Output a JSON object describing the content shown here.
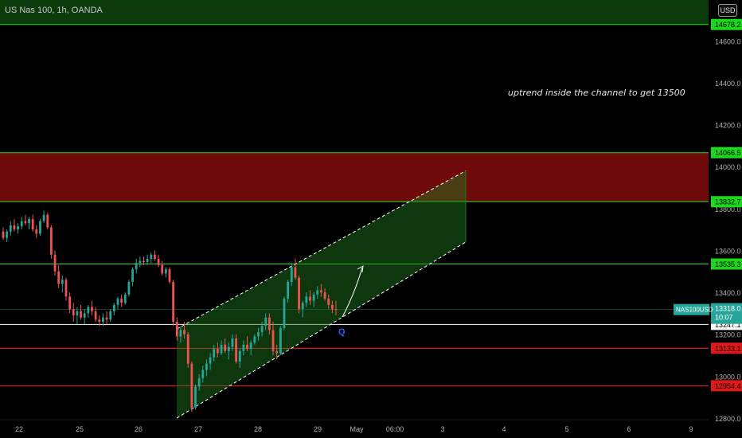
{
  "header": {
    "symbol": "US Nas 100, 1h, OANDA",
    "currency": "USD"
  },
  "annotation": "uptrend inside the channel  to get 13500",
  "chart_data": {
    "type": "candlestick",
    "ylim": [
      12800,
      14430
    ],
    "y_ticks": [
      "14600.0",
      "14400.0",
      "14200.0",
      "14000.0",
      "13800.0",
      "13600.0",
      "13400.0",
      "13200.0",
      "13000.0",
      "12800.0"
    ],
    "x_ticks": [
      "22",
      "25",
      "26",
      "27",
      "28",
      "29",
      "May",
      "06:00",
      "3",
      "4",
      "5",
      "6",
      "9"
    ],
    "last_price": {
      "symbol": "NAS100USD",
      "price": "13318.0",
      "countdown": "10:07",
      "color": "#26a69a"
    },
    "levels": [
      {
        "value": 14678.2,
        "label": "14678.2",
        "color": "#20e020"
      },
      {
        "value": 14066.5,
        "label": "14066.5",
        "color": "#20e020"
      },
      {
        "value": 13832.7,
        "label": "13832.7",
        "color": "#20e020"
      },
      {
        "value": 13535.3,
        "label": "13535.3",
        "color": "#20e020"
      },
      {
        "value": 13247.1,
        "label": "13247.1",
        "color": "#ffffff"
      },
      {
        "value": 13133.1,
        "label": "13133.1",
        "color": "#ff2020"
      },
      {
        "value": 12954.4,
        "label": "12954.4",
        "color": "#ff2020"
      }
    ],
    "zones": [
      {
        "from": 14678.2,
        "to": 14900,
        "color": "#0b3a0b"
      },
      {
        "from": 13832.7,
        "to": 14066.5,
        "color": "#6e0a0a"
      }
    ],
    "channel": {
      "start_close": 12850,
      "end": 13980,
      "bottom_end": 13640
    },
    "marker_label": "Q",
    "candles": [
      [
        13690,
        13710,
        13650,
        13660
      ],
      [
        13660,
        13700,
        13640,
        13690
      ],
      [
        13690,
        13740,
        13670,
        13720
      ],
      [
        13720,
        13750,
        13690,
        13700
      ],
      [
        13700,
        13730,
        13680,
        13715
      ],
      [
        13715,
        13760,
        13700,
        13740
      ],
      [
        13740,
        13770,
        13720,
        13730
      ],
      [
        13730,
        13760,
        13700,
        13750
      ],
      [
        13750,
        13770,
        13690,
        13700
      ],
      [
        13700,
        13720,
        13660,
        13680
      ],
      [
        13680,
        13750,
        13670,
        13740
      ],
      [
        13740,
        13790,
        13730,
        13770
      ],
      [
        13770,
        13780,
        13700,
        13710
      ],
      [
        13710,
        13720,
        13560,
        13580
      ],
      [
        13580,
        13600,
        13480,
        13500
      ],
      [
        13500,
        13530,
        13420,
        13440
      ],
      [
        13440,
        13480,
        13400,
        13460
      ],
      [
        13460,
        13470,
        13360,
        13380
      ],
      [
        13380,
        13400,
        13300,
        13320
      ],
      [
        13320,
        13350,
        13260,
        13290
      ],
      [
        13290,
        13330,
        13250,
        13310
      ],
      [
        13310,
        13340,
        13270,
        13280
      ],
      [
        13280,
        13320,
        13250,
        13300
      ],
      [
        13300,
        13340,
        13280,
        13330
      ],
      [
        13330,
        13360,
        13290,
        13310
      ],
      [
        13310,
        13330,
        13260,
        13270
      ],
      [
        13270,
        13290,
        13240,
        13260
      ],
      [
        13260,
        13300,
        13240,
        13280
      ],
      [
        13280,
        13310,
        13250,
        13270
      ],
      [
        13270,
        13320,
        13260,
        13310
      ],
      [
        13310,
        13350,
        13290,
        13340
      ],
      [
        13340,
        13380,
        13320,
        13370
      ],
      [
        13370,
        13390,
        13330,
        13350
      ],
      [
        13350,
        13400,
        13340,
        13390
      ],
      [
        13390,
        13460,
        13380,
        13450
      ],
      [
        13450,
        13520,
        13430,
        13510
      ],
      [
        13510,
        13560,
        13490,
        13540
      ],
      [
        13540,
        13570,
        13520,
        13550
      ],
      [
        13550,
        13570,
        13530,
        13545
      ],
      [
        13545,
        13580,
        13530,
        13560
      ],
      [
        13560,
        13590,
        13540,
        13580
      ],
      [
        13580,
        13600,
        13550,
        13560
      ],
      [
        13560,
        13580,
        13520,
        13530
      ],
      [
        13530,
        13550,
        13480,
        13490
      ],
      [
        13490,
        13520,
        13470,
        13510
      ],
      [
        13510,
        13520,
        13440,
        13450
      ],
      [
        13450,
        13460,
        13240,
        13260
      ],
      [
        13260,
        13280,
        13170,
        13190
      ],
      [
        13190,
        13240,
        13160,
        13220
      ],
      [
        13220,
        13260,
        13180,
        13200
      ],
      [
        13200,
        13210,
        13040,
        13060
      ],
      [
        13060,
        13070,
        12830,
        12850
      ],
      [
        12850,
        12960,
        12840,
        12950
      ],
      [
        12950,
        13010,
        12930,
        12990
      ],
      [
        12990,
        13050,
        12970,
        13030
      ],
      [
        13030,
        13080,
        13000,
        13060
      ],
      [
        13060,
        13110,
        13030,
        13090
      ],
      [
        13090,
        13150,
        13070,
        13130
      ],
      [
        13130,
        13160,
        13090,
        13110
      ],
      [
        13110,
        13170,
        13100,
        13150
      ],
      [
        13150,
        13180,
        13110,
        13120
      ],
      [
        13120,
        13160,
        13080,
        13140
      ],
      [
        13140,
        13200,
        13120,
        13180
      ],
      [
        13180,
        13200,
        13060,
        13070
      ],
      [
        13070,
        13130,
        13040,
        13120
      ],
      [
        13120,
        13170,
        13100,
        13150
      ],
      [
        13150,
        13190,
        13120,
        13130
      ],
      [
        13130,
        13170,
        13100,
        13160
      ],
      [
        13160,
        13200,
        13150,
        13190
      ],
      [
        13190,
        13230,
        13170,
        13210
      ],
      [
        13210,
        13260,
        13190,
        13240
      ],
      [
        13240,
        13300,
        13220,
        13280
      ],
      [
        13280,
        13300,
        13200,
        13220
      ],
      [
        13220,
        13260,
        13100,
        13120
      ],
      [
        13120,
        13150,
        13080,
        13110
      ],
      [
        13110,
        13240,
        13100,
        13230
      ],
      [
        13230,
        13380,
        13220,
        13370
      ],
      [
        13370,
        13460,
        13350,
        13450
      ],
      [
        13450,
        13540,
        13430,
        13520
      ],
      [
        13520,
        13560,
        13460,
        13470
      ],
      [
        13470,
        13480,
        13300,
        13320
      ],
      [
        13320,
        13360,
        13280,
        13350
      ],
      [
        13350,
        13400,
        13330,
        13380
      ],
      [
        13380,
        13410,
        13340,
        13360
      ],
      [
        13360,
        13400,
        13330,
        13390
      ],
      [
        13390,
        13430,
        13370,
        13410
      ],
      [
        13410,
        13440,
        13380,
        13400
      ],
      [
        13400,
        13420,
        13360,
        13370
      ],
      [
        13370,
        13390,
        13320,
        13340
      ],
      [
        13340,
        13360,
        13300,
        13320
      ],
      [
        13320,
        13360,
        13290,
        13318
      ]
    ]
  }
}
